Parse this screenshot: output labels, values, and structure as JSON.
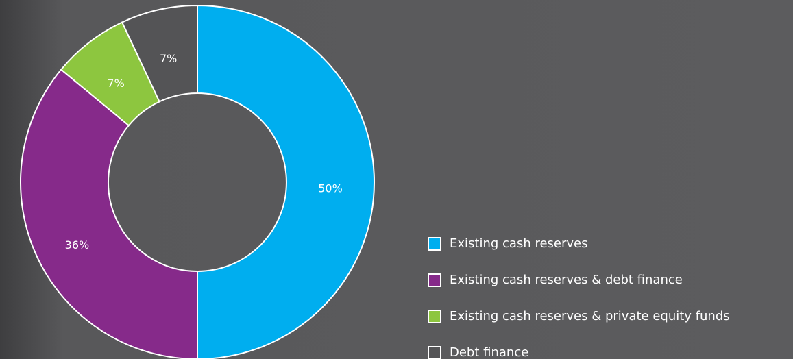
{
  "chart_data": {
    "type": "donut",
    "categories": [
      "Existing cash reserves",
      "Existing cash reserves & debt finance",
      "Existing cash reserves & private equity funds",
      "Debt finance"
    ],
    "values": [
      50,
      36,
      7,
      7
    ],
    "value_labels": [
      "50%",
      "36%",
      "7%",
      "7%"
    ],
    "colors": [
      "#00aeef",
      "#862a8a",
      "#8dc63f",
      "#545456"
    ],
    "legend": "right"
  }
}
